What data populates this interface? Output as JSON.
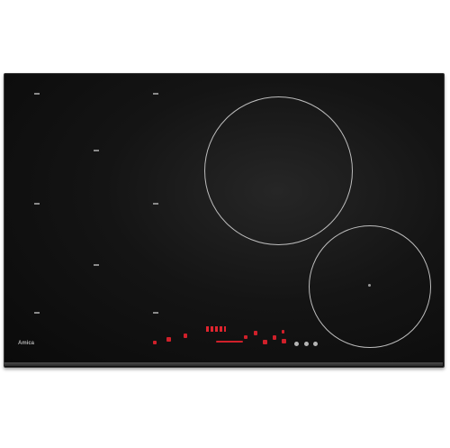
{
  "brand": {
    "top_left": "",
    "bottom_left": "Amica"
  },
  "colors": {
    "glass": "#0a0a0a",
    "zone_outline": "#bdbdbd",
    "control_red": "#d0202a"
  }
}
